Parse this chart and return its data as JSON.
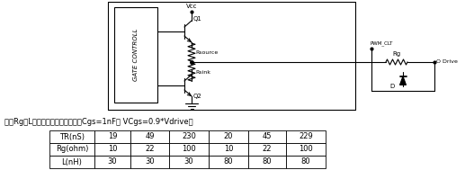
{
  "subtitle": "关于Rg、L对于上升时间的影响：（Cgs=1nF， VCgs=0.9*Vdrive）",
  "table_row1": [
    "TR(nS)",
    "19",
    "49",
    "230",
    "20",
    "45",
    "229"
  ],
  "table_row2": [
    "Rg(ohm)",
    "10",
    "22",
    "100",
    "10",
    "22",
    "100"
  ],
  "table_row3": [
    "L(nH)",
    "30",
    "30",
    "30",
    "80",
    "80",
    "80"
  ],
  "bg_color": "#ffffff",
  "fig_width": 5.27,
  "fig_height": 2.09,
  "dpi": 100
}
